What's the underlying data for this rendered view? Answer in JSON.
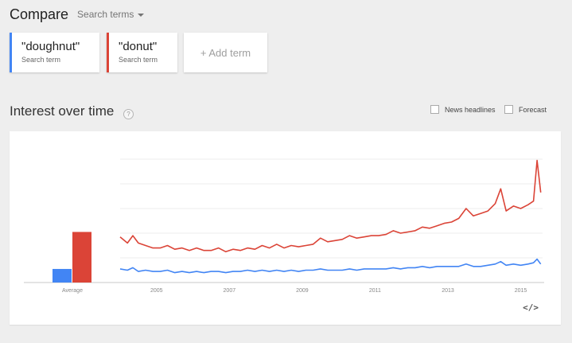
{
  "header": {
    "title": "Compare",
    "search_terms_label": "Search terms"
  },
  "terms": [
    {
      "name": "\"doughnut\"",
      "sub": "Search term",
      "color": "#4285f4"
    },
    {
      "name": "\"donut\"",
      "sub": "Search term",
      "color": "#db4437"
    }
  ],
  "add_term_label": "+ Add term",
  "section": {
    "title": "Interest over time",
    "help_glyph": "?",
    "news_headlines_label": "News headlines",
    "forecast_label": "Forecast"
  },
  "embed_glyph": "</>",
  "chart_data": {
    "type": "line",
    "title": "",
    "x_ticks": [
      "2005",
      "2007",
      "2009",
      "2011",
      "2013",
      "2015"
    ],
    "x_range": [
      2004.0,
      2015.6
    ],
    "y_range": [
      0,
      100
    ],
    "grid": true,
    "average": {
      "label": "Average",
      "values": [
        {
          "name": "\"doughnut\"",
          "value": 11
        },
        {
          "name": "\"donut\"",
          "value": 41
        }
      ]
    },
    "series": [
      {
        "name": "\"donut\"",
        "color": "#db4437",
        "points": [
          [
            2004.0,
            37
          ],
          [
            2004.2,
            32
          ],
          [
            2004.35,
            38
          ],
          [
            2004.5,
            32
          ],
          [
            2004.7,
            30
          ],
          [
            2004.9,
            28
          ],
          [
            2005.1,
            28
          ],
          [
            2005.3,
            30
          ],
          [
            2005.5,
            27
          ],
          [
            2005.7,
            28
          ],
          [
            2005.9,
            26
          ],
          [
            2006.1,
            28
          ],
          [
            2006.3,
            26
          ],
          [
            2006.5,
            26
          ],
          [
            2006.7,
            28
          ],
          [
            2006.9,
            25
          ],
          [
            2007.1,
            27
          ],
          [
            2007.3,
            26
          ],
          [
            2007.5,
            28
          ],
          [
            2007.7,
            27
          ],
          [
            2007.9,
            30
          ],
          [
            2008.1,
            28
          ],
          [
            2008.3,
            31
          ],
          [
            2008.5,
            28
          ],
          [
            2008.7,
            30
          ],
          [
            2008.9,
            29
          ],
          [
            2009.1,
            30
          ],
          [
            2009.3,
            31
          ],
          [
            2009.5,
            36
          ],
          [
            2009.7,
            33
          ],
          [
            2009.9,
            34
          ],
          [
            2010.1,
            35
          ],
          [
            2010.3,
            38
          ],
          [
            2010.5,
            36
          ],
          [
            2010.7,
            37
          ],
          [
            2010.9,
            38
          ],
          [
            2011.1,
            38
          ],
          [
            2011.3,
            39
          ],
          [
            2011.5,
            42
          ],
          [
            2011.7,
            40
          ],
          [
            2011.9,
            41
          ],
          [
            2012.1,
            42
          ],
          [
            2012.3,
            45
          ],
          [
            2012.5,
            44
          ],
          [
            2012.7,
            46
          ],
          [
            2012.9,
            48
          ],
          [
            2013.1,
            49
          ],
          [
            2013.3,
            52
          ],
          [
            2013.5,
            60
          ],
          [
            2013.7,
            54
          ],
          [
            2013.9,
            56
          ],
          [
            2014.1,
            58
          ],
          [
            2014.3,
            64
          ],
          [
            2014.45,
            76
          ],
          [
            2014.6,
            58
          ],
          [
            2014.8,
            62
          ],
          [
            2015.0,
            60
          ],
          [
            2015.2,
            63
          ],
          [
            2015.35,
            66
          ],
          [
            2015.45,
            99
          ],
          [
            2015.55,
            73
          ]
        ]
      },
      {
        "name": "\"doughnut\"",
        "color": "#4285f4",
        "points": [
          [
            2004.0,
            11
          ],
          [
            2004.2,
            10
          ],
          [
            2004.35,
            12
          ],
          [
            2004.5,
            9
          ],
          [
            2004.7,
            10
          ],
          [
            2004.9,
            9
          ],
          [
            2005.1,
            9
          ],
          [
            2005.3,
            10
          ],
          [
            2005.5,
            8
          ],
          [
            2005.7,
            9
          ],
          [
            2005.9,
            8
          ],
          [
            2006.1,
            9
          ],
          [
            2006.3,
            8
          ],
          [
            2006.5,
            9
          ],
          [
            2006.7,
            9
          ],
          [
            2006.9,
            8
          ],
          [
            2007.1,
            9
          ],
          [
            2007.3,
            9
          ],
          [
            2007.5,
            10
          ],
          [
            2007.7,
            9
          ],
          [
            2007.9,
            10
          ],
          [
            2008.1,
            9
          ],
          [
            2008.3,
            10
          ],
          [
            2008.5,
            9
          ],
          [
            2008.7,
            10
          ],
          [
            2008.9,
            9
          ],
          [
            2009.1,
            10
          ],
          [
            2009.3,
            10
          ],
          [
            2009.5,
            11
          ],
          [
            2009.7,
            10
          ],
          [
            2009.9,
            10
          ],
          [
            2010.1,
            10
          ],
          [
            2010.3,
            11
          ],
          [
            2010.5,
            10
          ],
          [
            2010.7,
            11
          ],
          [
            2010.9,
            11
          ],
          [
            2011.1,
            11
          ],
          [
            2011.3,
            11
          ],
          [
            2011.5,
            12
          ],
          [
            2011.7,
            11
          ],
          [
            2011.9,
            12
          ],
          [
            2012.1,
            12
          ],
          [
            2012.3,
            13
          ],
          [
            2012.5,
            12
          ],
          [
            2012.7,
            13
          ],
          [
            2012.9,
            13
          ],
          [
            2013.1,
            13
          ],
          [
            2013.3,
            13
          ],
          [
            2013.5,
            15
          ],
          [
            2013.7,
            13
          ],
          [
            2013.9,
            13
          ],
          [
            2014.1,
            14
          ],
          [
            2014.3,
            15
          ],
          [
            2014.45,
            17
          ],
          [
            2014.6,
            14
          ],
          [
            2014.8,
            15
          ],
          [
            2015.0,
            14
          ],
          [
            2015.2,
            15
          ],
          [
            2015.35,
            16
          ],
          [
            2015.45,
            19
          ],
          [
            2015.55,
            15
          ]
        ]
      }
    ]
  }
}
